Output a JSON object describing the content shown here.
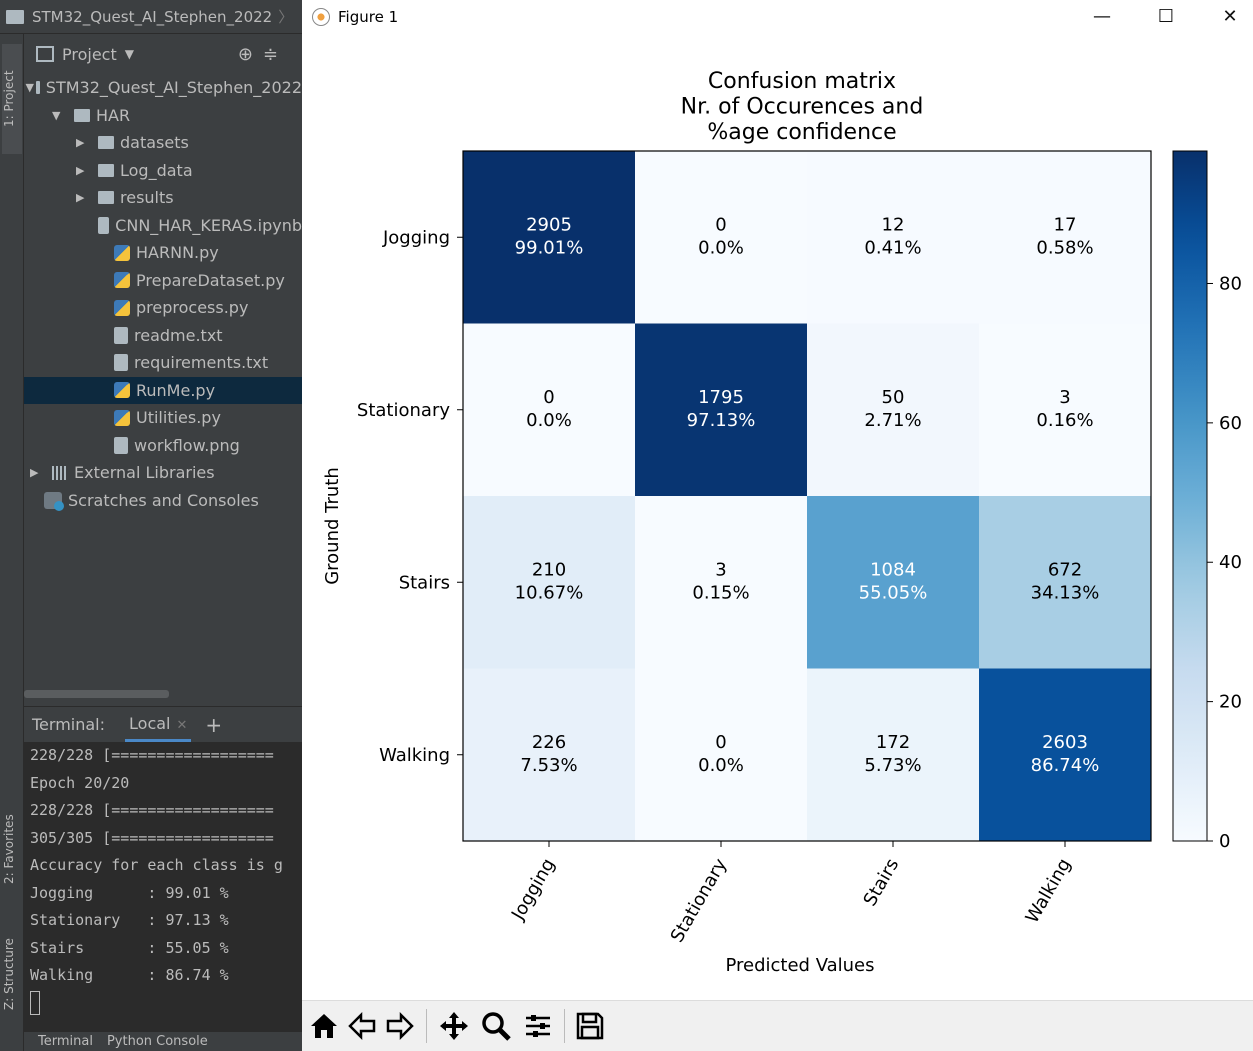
{
  "ide": {
    "project_title": "STM32_Quest_AI_Stephen_2022",
    "project_panel_label": "Project",
    "left_tabs": {
      "project": "1: Project",
      "favorites": "2: Favorites",
      "structure": "Z: Structure"
    },
    "tree": [
      {
        "label": "STM32_Quest_AI_Stephen_2022",
        "type": "folder",
        "level": 0,
        "expanded": true
      },
      {
        "label": "HAR",
        "type": "folder",
        "level": 1,
        "expanded": true
      },
      {
        "label": "datasets",
        "type": "folder",
        "level": 2,
        "expanded": false
      },
      {
        "label": "Log_data",
        "type": "folder",
        "level": 2,
        "expanded": false
      },
      {
        "label": "results",
        "type": "folder",
        "level": 2,
        "expanded": false
      },
      {
        "label": "CNN_HAR_KERAS.ipynb",
        "type": "file",
        "level": 3
      },
      {
        "label": "HARNN.py",
        "type": "py",
        "level": 3
      },
      {
        "label": "PrepareDataset.py",
        "type": "py",
        "level": 3
      },
      {
        "label": "preprocess.py",
        "type": "py",
        "level": 3
      },
      {
        "label": "readme.txt",
        "type": "file",
        "level": 3
      },
      {
        "label": "requirements.txt",
        "type": "file",
        "level": 3
      },
      {
        "label": "RunMe.py",
        "type": "py",
        "level": 3,
        "selected": true
      },
      {
        "label": "Utilities.py",
        "type": "py",
        "level": 3
      },
      {
        "label": "workflow.png",
        "type": "file",
        "level": 3
      },
      {
        "label": "External Libraries",
        "type": "lib",
        "level": 0,
        "expanded": false
      },
      {
        "label": "Scratches and Consoles",
        "type": "scratch",
        "level": 0
      }
    ],
    "terminal": {
      "label": "Terminal:",
      "tab": "Local",
      "lines": [
        "228/228 [==================",
        "Epoch 20/20",
        "228/228 [==================",
        "305/305 [==================",
        "Accuracy for each class is g",
        "Jogging      : 99.01 %",
        "Stationary   : 97.13 %",
        "Stairs       : 55.05 %",
        "Walking      : 86.74 %"
      ]
    },
    "bottom_tabs": [
      "Terminal",
      "Python Console"
    ]
  },
  "figure": {
    "window_title": "Figure 1",
    "controls": {
      "minimize": "—",
      "maximize": "☐",
      "close": "✕"
    },
    "toolbar_icons": [
      "home-icon",
      "back-icon",
      "forward-icon",
      "pan-icon",
      "zoom-icon",
      "configure-icon",
      "save-icon"
    ]
  },
  "chart_data": {
    "type": "heatmap",
    "title": [
      "Confusion matrix",
      "Nr. of Occurences and",
      "%age confidence"
    ],
    "xlabel": "Predicted Values",
    "ylabel": "Ground Truth",
    "x_categories": [
      "Jogging",
      "Stationary",
      "Stairs",
      "Walking"
    ],
    "y_categories": [
      "Jogging",
      "Stationary",
      "Stairs",
      "Walking"
    ],
    "counts": [
      [
        2905,
        0,
        12,
        17
      ],
      [
        0,
        1795,
        50,
        3
      ],
      [
        210,
        3,
        1084,
        672
      ],
      [
        226,
        0,
        172,
        2603
      ]
    ],
    "percent_labels": [
      [
        "99.01%",
        "0.0%",
        "0.41%",
        "0.58%"
      ],
      [
        "0.0%",
        "97.13%",
        "2.71%",
        "0.16%"
      ],
      [
        "10.67%",
        "0.15%",
        "55.05%",
        "34.13%"
      ],
      [
        "7.53%",
        "0.0%",
        "5.73%",
        "86.74%"
      ]
    ],
    "percent_values": [
      [
        99.01,
        0.0,
        0.41,
        0.58
      ],
      [
        0.0,
        97.13,
        2.71,
        0.16
      ],
      [
        10.67,
        0.15,
        55.05,
        34.13
      ],
      [
        7.53,
        0.0,
        5.73,
        86.74
      ]
    ],
    "colormap": "Blues",
    "colorbar": {
      "ticks": [
        0,
        20,
        40,
        60,
        80
      ],
      "range": [
        0,
        99.01
      ]
    }
  }
}
